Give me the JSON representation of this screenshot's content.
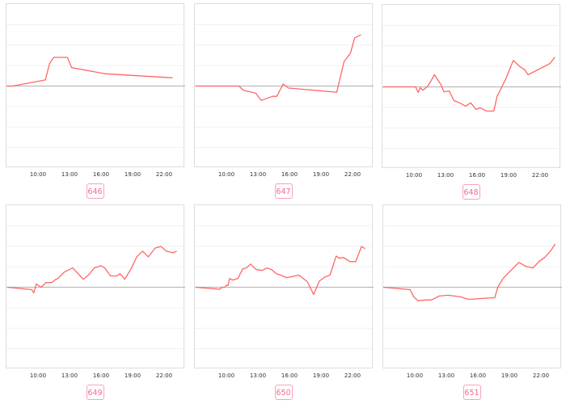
{
  "colors": {
    "line": "#ff6666",
    "zero_line": "#bbbbbb",
    "grid": "#f0f0f0",
    "badge": "#f06b8c"
  },
  "chart_data": [
    {
      "type": "line",
      "label": "646",
      "xlim": [
        "07:00",
        "24:00"
      ],
      "ylim": [
        -4,
        4
      ],
      "grid": true,
      "x_ticks": [
        "10:00",
        "13:00",
        "16:00",
        "19:00",
        "22:00"
      ],
      "points": [
        [
          "07:00",
          0
        ],
        [
          "07:36",
          0
        ],
        [
          "10:42",
          0.3
        ],
        [
          "11:06",
          1.1
        ],
        [
          "11:30",
          1.4
        ],
        [
          "12:48",
          1.4
        ],
        [
          "13:12",
          0.9
        ],
        [
          "16:24",
          0.6
        ],
        [
          "22:48",
          0.4
        ]
      ]
    },
    {
      "type": "line",
      "label": "647",
      "xlim": [
        "07:00",
        "24:00"
      ],
      "ylim": [
        -4,
        4
      ],
      "grid": true,
      "x_ticks": [
        "10:00",
        "13:00",
        "16:00",
        "19:00",
        "22:00"
      ],
      "points": [
        [
          "07:06",
          0
        ],
        [
          "11:12",
          0
        ],
        [
          "11:36",
          -0.2
        ],
        [
          "12:48",
          -0.35
        ],
        [
          "13:18",
          -0.7
        ],
        [
          "14:24",
          -0.5
        ],
        [
          "14:48",
          -0.5
        ],
        [
          "15:24",
          0.1
        ],
        [
          "15:54",
          -0.1
        ],
        [
          "20:30",
          -0.3
        ],
        [
          "20:48",
          0.35
        ],
        [
          "21:12",
          1.2
        ],
        [
          "21:48",
          1.6
        ],
        [
          "22:12",
          2.35
        ],
        [
          "22:48",
          2.5
        ]
      ]
    },
    {
      "type": "line",
      "label": "648",
      "xlim": [
        "07:00",
        "24:00"
      ],
      "ylim": [
        -4,
        4
      ],
      "grid": true,
      "x_ticks": [
        "10:00",
        "13:00",
        "16:00",
        "19:00",
        "22:00"
      ],
      "points": [
        [
          "07:03",
          0
        ],
        [
          "10:09",
          0
        ],
        [
          "10:24",
          -0.27
        ],
        [
          "10:36",
          -0.04
        ],
        [
          "10:51",
          -0.16
        ],
        [
          "11:15",
          0
        ],
        [
          "11:36",
          0.27
        ],
        [
          "11:57",
          0.59
        ],
        [
          "12:33",
          0.12
        ],
        [
          "12:51",
          -0.24
        ],
        [
          "13:21",
          -0.2
        ],
        [
          "13:48",
          -0.67
        ],
        [
          "14:21",
          -0.78
        ],
        [
          "14:54",
          -0.94
        ],
        [
          "15:24",
          -0.78
        ],
        [
          "15:54",
          -1.1
        ],
        [
          "16:18",
          -1.02
        ],
        [
          "16:54",
          -1.18
        ],
        [
          "17:36",
          -1.18
        ],
        [
          "17:54",
          -0.47
        ],
        [
          "18:42",
          0.35
        ],
        [
          "19:27",
          1.29
        ],
        [
          "20:06",
          0.98
        ],
        [
          "20:33",
          0.82
        ],
        [
          "20:51",
          0.59
        ],
        [
          "22:57",
          1.14
        ],
        [
          "23:24",
          1.45
        ]
      ]
    },
    {
      "type": "line",
      "label": "649",
      "xlim": [
        "07:00",
        "24:00"
      ],
      "ylim": [
        -4,
        4
      ],
      "grid": true,
      "x_ticks": [
        "10:00",
        "13:00",
        "16:00",
        "19:00",
        "22:00"
      ],
      "points": [
        [
          "07:06",
          0
        ],
        [
          "09:24",
          -0.12
        ],
        [
          "09:36",
          -0.27
        ],
        [
          "09:51",
          0.16
        ],
        [
          "10:18",
          0
        ],
        [
          "10:45",
          0.23
        ],
        [
          "11:18",
          0.23
        ],
        [
          "11:42",
          0.39
        ],
        [
          "11:54",
          0.43
        ],
        [
          "12:30",
          0.74
        ],
        [
          "13:18",
          0.94
        ],
        [
          "14:18",
          0.39
        ],
        [
          "14:48",
          0.59
        ],
        [
          "15:21",
          0.94
        ],
        [
          "16:00",
          1.05
        ],
        [
          "16:21",
          0.94
        ],
        [
          "16:54",
          0.55
        ],
        [
          "17:30",
          0.55
        ],
        [
          "17:48",
          0.66
        ],
        [
          "18:15",
          0.39
        ],
        [
          "18:51",
          0.9
        ],
        [
          "19:24",
          1.48
        ],
        [
          "19:57",
          1.76
        ],
        [
          "20:30",
          1.48
        ],
        [
          "21:09",
          1.91
        ],
        [
          "21:42",
          1.99
        ],
        [
          "22:12",
          1.76
        ],
        [
          "22:51",
          1.68
        ],
        [
          "23:12",
          1.76
        ]
      ]
    },
    {
      "type": "line",
      "label": "650",
      "xlim": [
        "07:00",
        "24:00"
      ],
      "ylim": [
        -4,
        4
      ],
      "grid": true,
      "x_ticks": [
        "10:00",
        "13:00",
        "16:00",
        "19:00",
        "22:00"
      ],
      "points": [
        [
          "07:06",
          0
        ],
        [
          "09:24",
          -0.1
        ],
        [
          "09:33",
          0
        ],
        [
          "09:51",
          0
        ],
        [
          "10:00",
          0.1
        ],
        [
          "10:09",
          0.08
        ],
        [
          "10:18",
          0.43
        ],
        [
          "10:36",
          0.35
        ],
        [
          "11:06",
          0.43
        ],
        [
          "11:33",
          0.9
        ],
        [
          "11:54",
          0.94
        ],
        [
          "12:18",
          1.13
        ],
        [
          "12:51",
          0.86
        ],
        [
          "13:24",
          0.82
        ],
        [
          "13:51",
          0.94
        ],
        [
          "14:18",
          0.86
        ],
        [
          "14:45",
          0.66
        ],
        [
          "15:09",
          0.59
        ],
        [
          "15:45",
          0.47
        ],
        [
          "16:54",
          0.59
        ],
        [
          "17:42",
          0.27
        ],
        [
          "18:18",
          -0.35
        ],
        [
          "18:51",
          0.31
        ],
        [
          "19:24",
          0.51
        ],
        [
          "19:51",
          0.59
        ],
        [
          "20:27",
          1.52
        ],
        [
          "20:45",
          1.41
        ],
        [
          "21:09",
          1.45
        ],
        [
          "21:45",
          1.25
        ],
        [
          "22:18",
          1.25
        ],
        [
          "22:51",
          1.99
        ],
        [
          "23:12",
          1.88
        ]
      ]
    },
    {
      "type": "line",
      "label": "651",
      "xlim": [
        "07:00",
        "24:00"
      ],
      "ylim": [
        -4,
        4
      ],
      "grid": true,
      "x_ticks": [
        "10:00",
        "13:00",
        "16:00",
        "19:00",
        "22:00"
      ],
      "points": [
        [
          "07:00",
          0
        ],
        [
          "09:33",
          -0.12
        ],
        [
          "09:54",
          -0.47
        ],
        [
          "10:18",
          -0.66
        ],
        [
          "11:06",
          -0.62
        ],
        [
          "11:36",
          -0.62
        ],
        [
          "12:18",
          -0.43
        ],
        [
          "13:12",
          -0.39
        ],
        [
          "14:21",
          -0.47
        ],
        [
          "15:06",
          -0.59
        ],
        [
          "17:36",
          -0.51
        ],
        [
          "17:54",
          0
        ],
        [
          "18:24",
          0.43
        ],
        [
          "19:54",
          1.21
        ],
        [
          "20:33",
          1.02
        ],
        [
          "21:15",
          0.94
        ],
        [
          "21:48",
          1.25
        ],
        [
          "22:21",
          1.45
        ],
        [
          "22:54",
          1.76
        ],
        [
          "23:21",
          2.11
        ]
      ]
    }
  ]
}
